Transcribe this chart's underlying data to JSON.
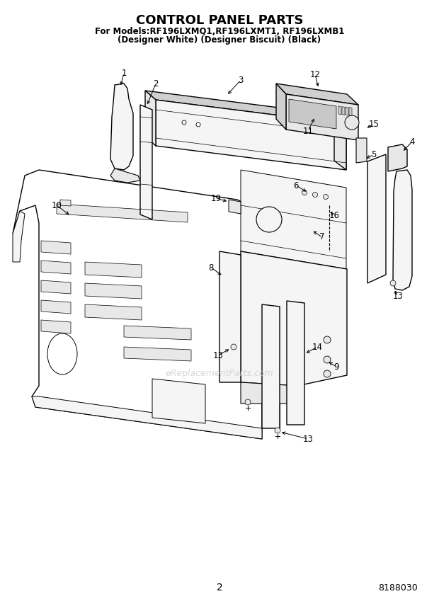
{
  "title": "CONTROL PANEL PARTS",
  "subtitle_line1": "For Models:RF196LXMQ1,RF196LXMT1, RF196LXMB1",
  "subtitle_line2": "(Designer White) (Designer Biscuit) (Black)",
  "page_number": "2",
  "part_number": "8188030",
  "watermark": "eReplacementParts.com",
  "bg": "#ffffff",
  "fig_width": 6.2,
  "fig_height": 8.56,
  "dpi": 100
}
